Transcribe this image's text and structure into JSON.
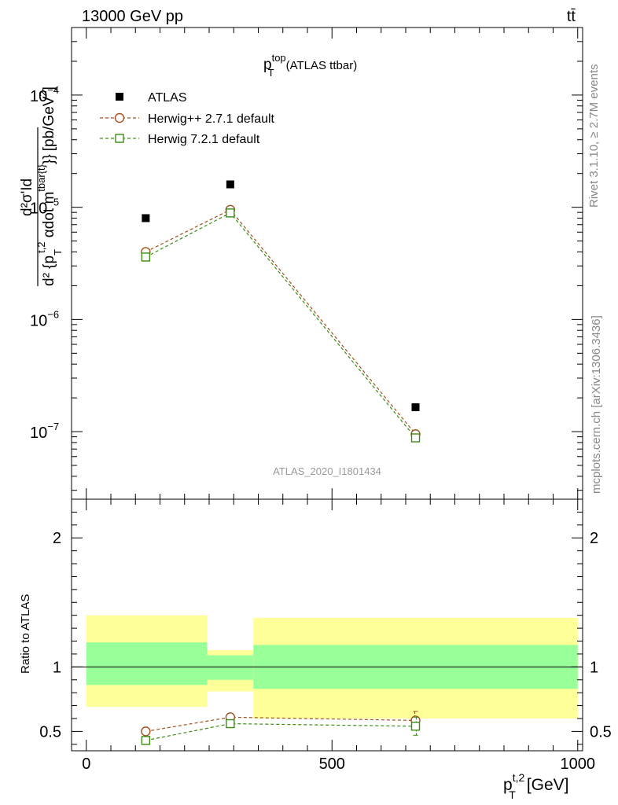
{
  "header": {
    "process": "13000 GeV pp",
    "final_state": "tt̄"
  },
  "side_labels": {
    "rivet": "Rivet 3.1.10, ≥ 2.7M events",
    "source": "mcplots.cern.ch [arXiv:1306.3436]"
  },
  "colors": {
    "atlas": "#000000",
    "herwig_pp": "#a0521e",
    "herwig7": "#3c8c14",
    "band_inner": "#99ff99",
    "band_outer": "#ffff99"
  },
  "chart_data": [
    {
      "type": "scatter",
      "title": {
        "main": "p",
        "sup": "top",
        "sub": "T",
        "suffix": "(ATLAS ttbar)"
      },
      "ylabel": "d²σ'Id d²{p_T^t,2 αdot m^tbar{t}} [pb/GeV²]",
      "ylabel_parts": {
        "numerator": "d²σ'Id",
        "denominator": "d² {p",
        "den_sub": "T",
        "den_sup": "t,2",
        "den_mid": " αdot m",
        "den_sup2": "tbar{t}",
        "den_end": "}}",
        "unit": "[pb/GeV",
        "unit_sup": "2",
        "unit_end": "]"
      },
      "yscale": "log",
      "ylim": [
        2.5e-08,
        0.0004
      ],
      "yticks": [
        1e-07,
        1e-06,
        1e-05,
        0.0001
      ],
      "ytick_labels": [
        {
          "base": "10",
          "exp": "−7"
        },
        {
          "base": "10",
          "exp": "−6"
        },
        {
          "base": "10",
          "exp": "−5"
        },
        {
          "base": "10",
          "exp": "−4"
        }
      ],
      "xlim": [
        -30,
        1010
      ],
      "watermark": "ATLAS_2020_I1801434",
      "legend_position": "top-left",
      "series": [
        {
          "name": "ATLAS",
          "marker": "filled-square",
          "x": [
            121,
            293,
            670
          ],
          "y": [
            8e-06,
            1.6e-05,
            1.65e-07
          ]
        },
        {
          "name": "Herwig++ 2.7.1 default",
          "marker": "open-circle",
          "x": [
            121,
            293,
            670
          ],
          "y": [
            4e-06,
            9.5e-06,
            9.5e-08
          ]
        },
        {
          "name": "Herwig 7.2.1 default",
          "marker": "open-square",
          "x": [
            121,
            293,
            670
          ],
          "y": [
            3.6e-06,
            8.9e-06,
            8.8e-08
          ]
        }
      ]
    },
    {
      "type": "line",
      "ylabel": "Ratio to ATLAS",
      "xlabel": {
        "main": "p",
        "sup": "t,2",
        "sub": "T",
        "unit": "[GeV]"
      },
      "xlim": [
        -30,
        1010
      ],
      "ylim": [
        0.35,
        2.3
      ],
      "yticks": [
        0.5,
        1,
        2
      ],
      "ytick_labels": [
        "0.5",
        "1",
        "2"
      ],
      "xticks": [
        0,
        500,
        1000
      ],
      "xtick_labels": [
        "0",
        "500",
        "1000"
      ],
      "bands": [
        {
          "x0": 0,
          "x1": 246,
          "inner": [
            0.86,
            1.19
          ],
          "outer": [
            0.69,
            1.4
          ]
        },
        {
          "x0": 246,
          "x1": 340,
          "inner": [
            0.9,
            1.09
          ],
          "outer": [
            0.81,
            1.13
          ]
        },
        {
          "x0": 340,
          "x1": 1000,
          "inner": [
            0.83,
            1.17
          ],
          "outer": [
            0.6,
            1.38
          ]
        }
      ],
      "series": [
        {
          "name": "Herwig++ 2.7.1 default",
          "x": [
            121,
            293,
            670
          ],
          "y": [
            0.5,
            0.61,
            0.585
          ],
          "err": [
            0,
            0,
            0.07
          ]
        },
        {
          "name": "Herwig 7.2.1 default",
          "x": [
            121,
            293,
            670
          ],
          "y": [
            0.43,
            0.56,
            0.54
          ],
          "err": [
            0,
            0,
            0.07
          ]
        }
      ]
    }
  ]
}
